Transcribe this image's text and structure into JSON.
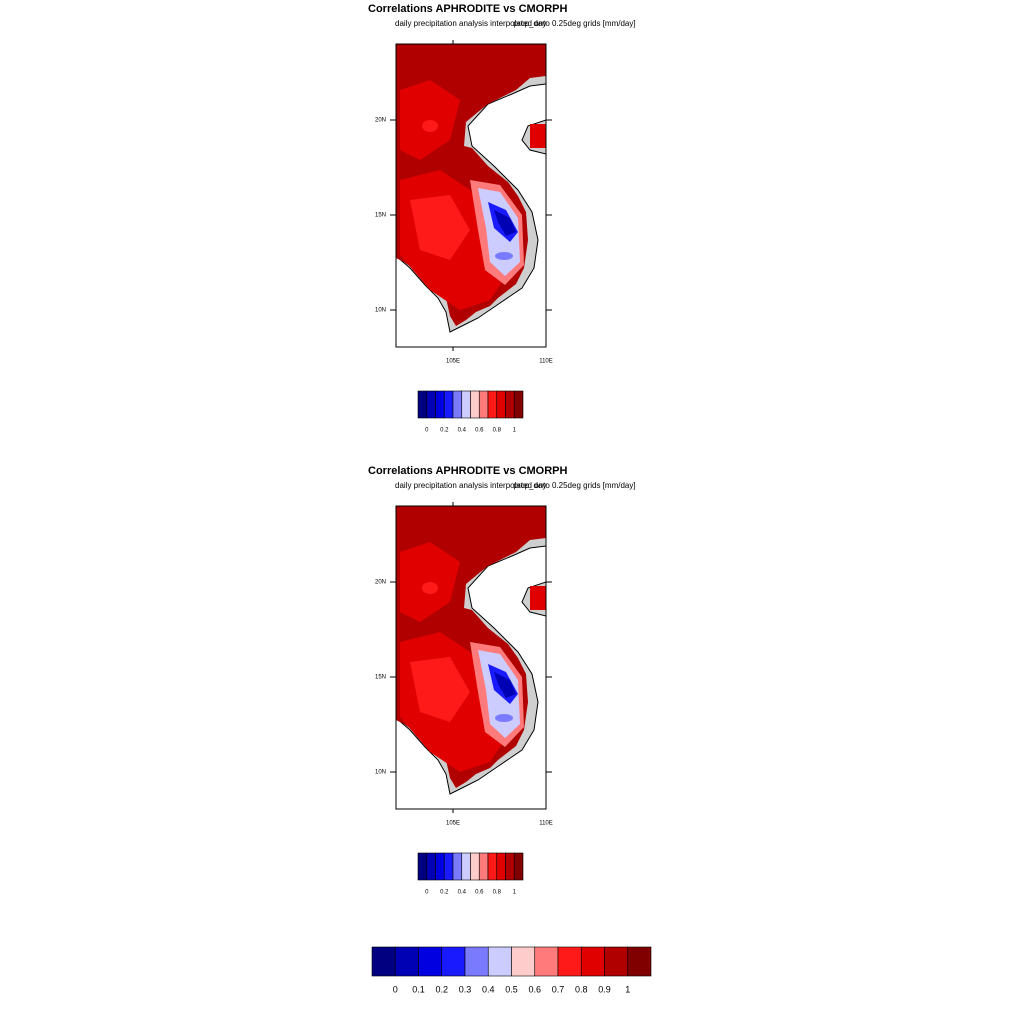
{
  "panels": [
    {
      "title": "Correlations APHRODITE vs CMORPH",
      "subtitle": "daily precipitation analysis interpolated onto 0.25deg grids [mm/day]",
      "overlay": "prcp_day",
      "lat_labels": [
        "20N",
        "15N",
        "10N"
      ],
      "lon_labels": [
        "105E",
        "110E"
      ],
      "colorbar_labels": [
        "0",
        "0.2",
        "0.4",
        "0.6",
        "0.8",
        "1"
      ]
    },
    {
      "title": "Correlations APHRODITE vs CMORPH",
      "subtitle": "daily precipitation analysis interpolated onto 0.25deg grids [mm/day]",
      "overlay": "prcp_day",
      "lat_labels": [
        "20N",
        "15N",
        "10N"
      ],
      "lon_labels": [
        "105E",
        "110E"
      ],
      "colorbar_labels": [
        "0",
        "0.2",
        "0.4",
        "0.6",
        "0.8",
        "1"
      ]
    }
  ],
  "colorbar": {
    "colors": [
      "#000080",
      "#0000b4",
      "#0000e0",
      "#1a1aff",
      "#7a7aff",
      "#ccccff",
      "#ffcccc",
      "#ff7a7a",
      "#ff1a1a",
      "#e00000",
      "#b00000",
      "#800000"
    ],
    "labels": [
      "0",
      "0.1",
      "0.2",
      "0.3",
      "0.4",
      "0.5",
      "0.6",
      "0.7",
      "0.8",
      "0.9",
      "1"
    ]
  }
}
